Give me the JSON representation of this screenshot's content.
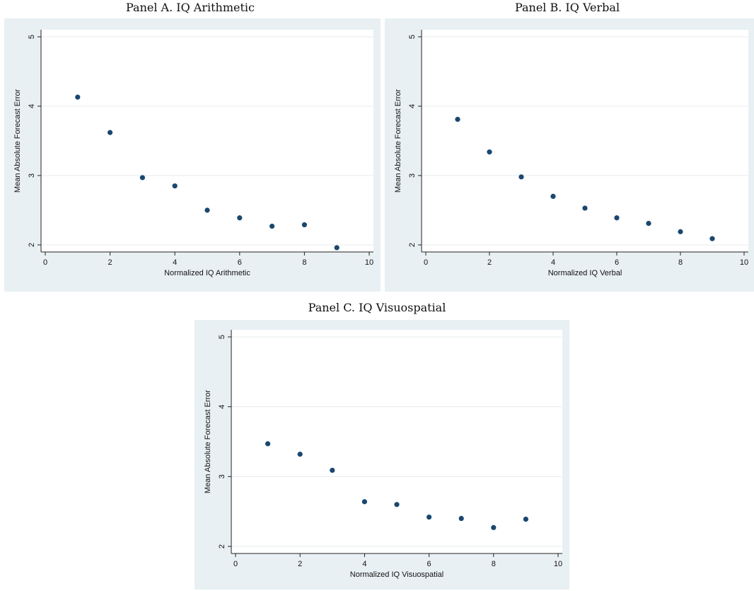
{
  "colors": {
    "panel_background": "#e9f0f3",
    "plot_background": "#ffffff",
    "gridline": "#e6ecef",
    "axis": "#222222",
    "marker": "#1a476f"
  },
  "chart_data": [
    {
      "type": "scatter",
      "title": "Panel A. IQ Arithmetic",
      "xlabel": "Normalized IQ Arithmetic",
      "ylabel": "Mean Absolute Forecast Error",
      "xlim": [
        0,
        10
      ],
      "ylim": [
        2,
        5
      ],
      "xticks": [
        0,
        2,
        4,
        6,
        8,
        10
      ],
      "yticks": [
        2,
        3,
        4,
        5
      ],
      "grid": true,
      "x": [
        1,
        2,
        3,
        4,
        5,
        6,
        7,
        8,
        9
      ],
      "y": [
        4.13,
        3.62,
        2.97,
        2.85,
        2.5,
        2.39,
        2.27,
        2.29,
        1.96
      ]
    },
    {
      "type": "scatter",
      "title": "Panel B. IQ Verbal",
      "xlabel": "Normalized IQ Verbal",
      "ylabel": "Mean Absolute Forecast Error",
      "xlim": [
        0,
        10
      ],
      "ylim": [
        2,
        5
      ],
      "xticks": [
        0,
        2,
        4,
        6,
        8,
        10
      ],
      "yticks": [
        2,
        3,
        4,
        5
      ],
      "grid": true,
      "x": [
        1,
        2,
        3,
        4,
        5,
        6,
        7,
        8,
        9
      ],
      "y": [
        3.81,
        3.34,
        2.98,
        2.7,
        2.53,
        2.39,
        2.31,
        2.19,
        2.09
      ]
    },
    {
      "type": "scatter",
      "title": "Panel C. IQ Visuospatial",
      "xlabel": "Normalized IQ Visuospatial",
      "ylabel": "Mean Absolute Forecast Error",
      "xlim": [
        0,
        10
      ],
      "ylim": [
        2,
        5
      ],
      "xticks": [
        0,
        2,
        4,
        6,
        8,
        10
      ],
      "yticks": [
        2,
        3,
        4,
        5
      ],
      "grid": true,
      "x": [
        1,
        2,
        3,
        4,
        5,
        6,
        7,
        8,
        9
      ],
      "y": [
        3.47,
        3.32,
        3.09,
        2.64,
        2.6,
        2.42,
        2.4,
        2.27,
        2.39
      ]
    }
  ]
}
